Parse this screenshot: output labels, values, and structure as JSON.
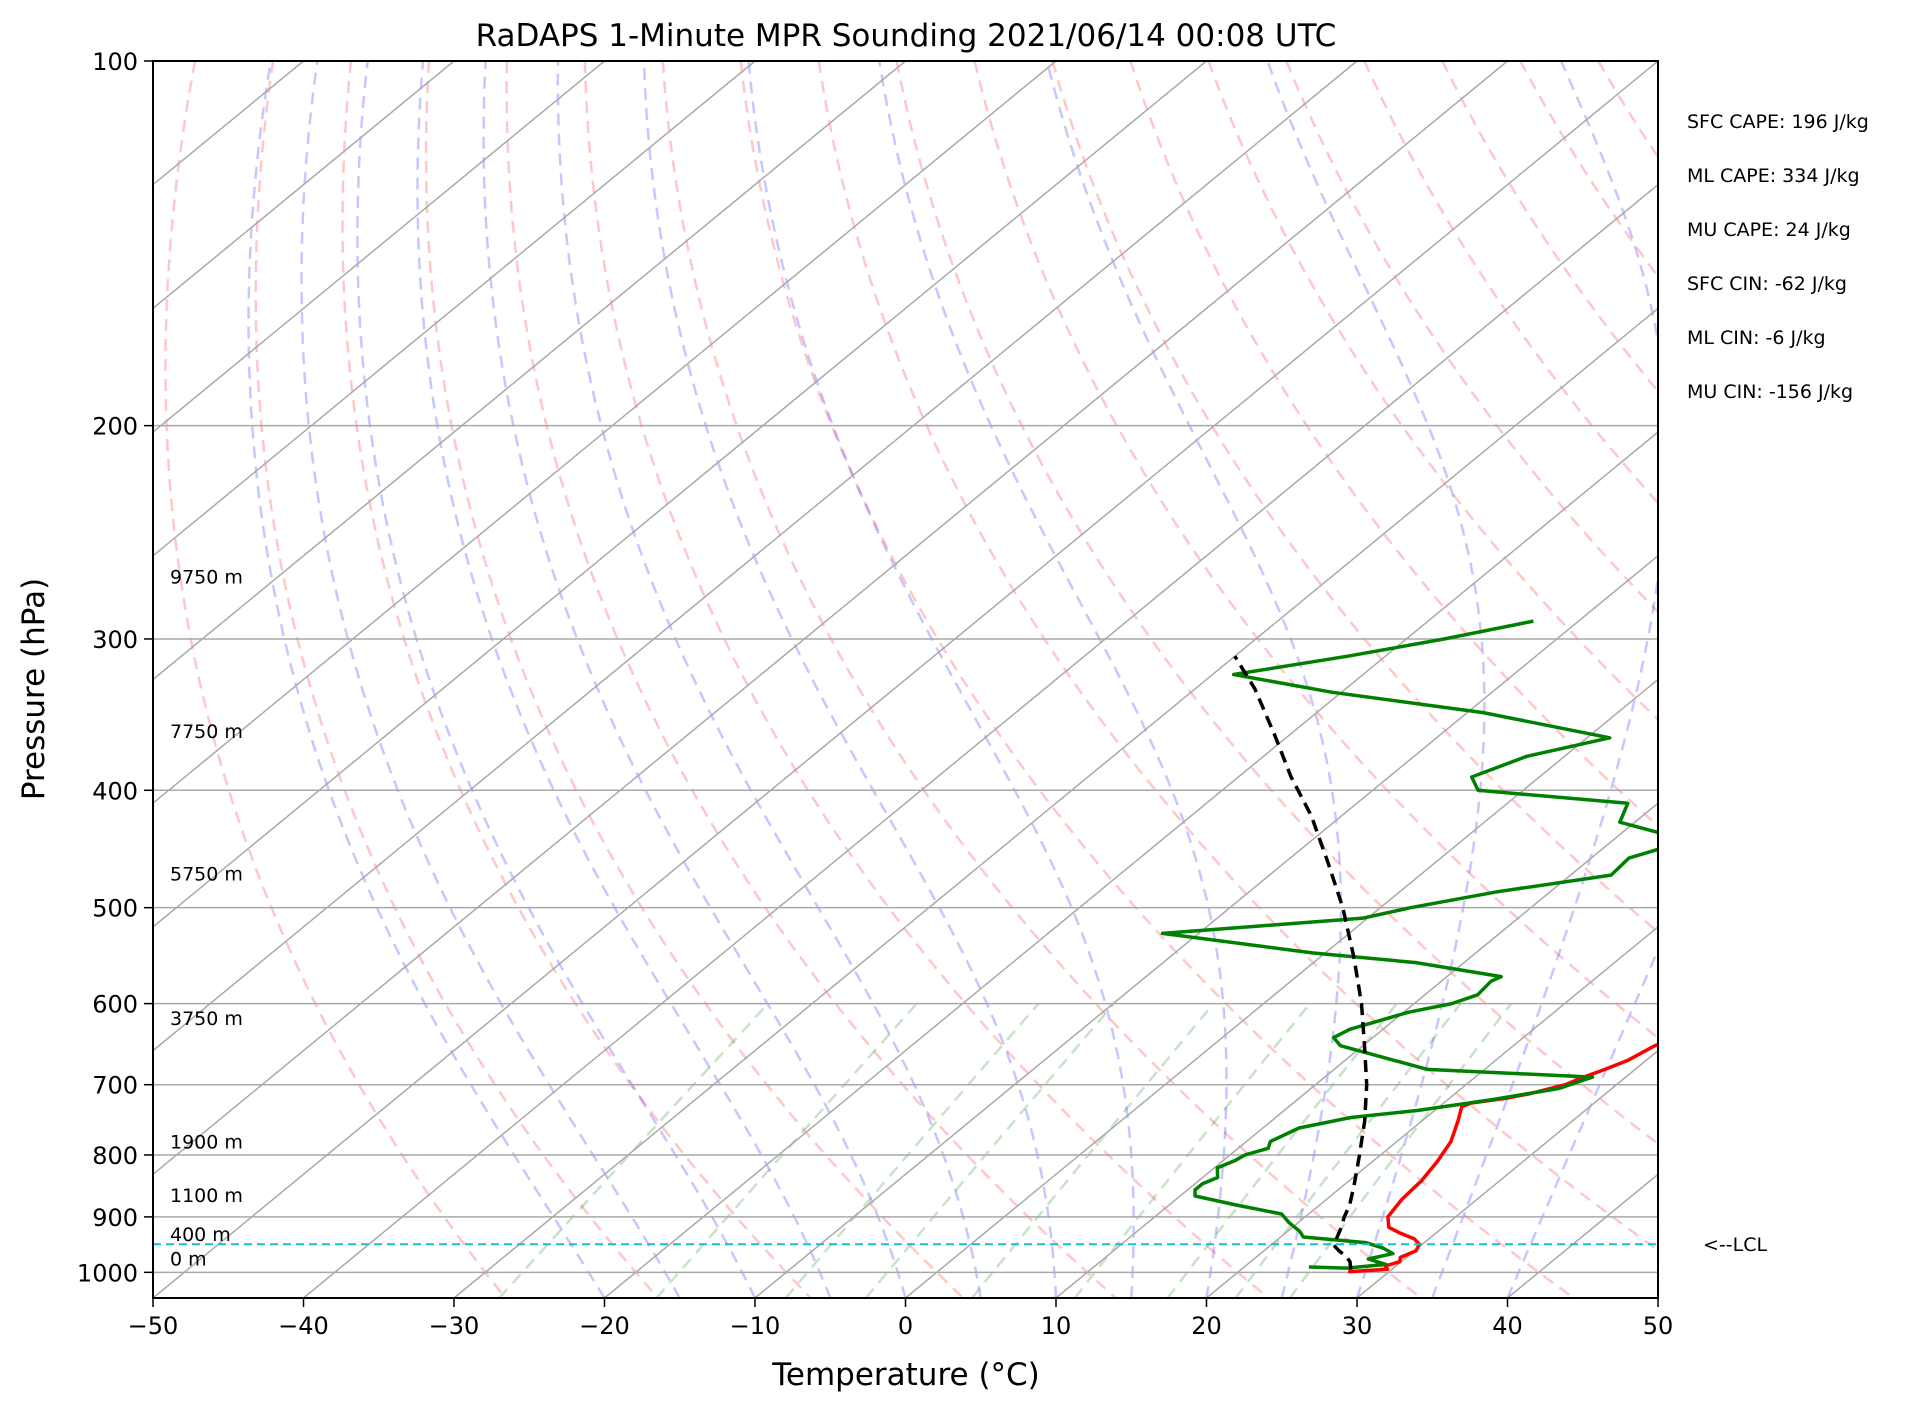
{
  "chart_data": {
    "type": "line",
    "title": "RaDAPS 1-Minute MPR Sounding 2021/06/14 00:08 UTC",
    "xlabel": "Temperature (°C)",
    "ylabel": "Pressure (hPa)",
    "xlim": [
      -50,
      50
    ],
    "ylim": [
      1050,
      100
    ],
    "y_scale": "log",
    "skew_t": true,
    "grid": true,
    "x_ticks": [
      -50,
      -40,
      -30,
      -20,
      -10,
      0,
      10,
      20,
      30,
      40,
      50
    ],
    "x_tick_labels": [
      "−50",
      "−40",
      "−30",
      "−20",
      "−10",
      "0",
      "10",
      "20",
      "30",
      "40",
      "50"
    ],
    "y_ticks": [
      100,
      200,
      300,
      400,
      500,
      600,
      700,
      800,
      900,
      1000
    ],
    "y_tick_labels": [
      "100",
      "200",
      "300",
      "400",
      "500",
      "600",
      "700",
      "800",
      "900",
      "1000"
    ],
    "height_labels": [
      {
        "p": 987,
        "text": "0 m"
      },
      {
        "p": 942,
        "text": "400 m"
      },
      {
        "p": 875,
        "text": "1100 m"
      },
      {
        "p": 790,
        "text": "1900 m"
      },
      {
        "p": 625,
        "text": "3750 m"
      },
      {
        "p": 475,
        "text": "5750 m"
      },
      {
        "p": 362,
        "text": "7750 m"
      },
      {
        "p": 270,
        "text": "9750 m"
      }
    ],
    "stats": [
      "SFC CAPE: 196 J/kg",
      "ML CAPE: 334 J/kg",
      "MU CAPE: 24 J/kg",
      "SFC CIN: -62 J/kg",
      "ML CIN: -6 J/kg",
      "MU CIN: -156 J/kg"
    ],
    "lcl": {
      "p": 948,
      "label": "<--LCL"
    },
    "series": [
      {
        "color": "#ff0000",
        "points": [
          [
            999,
            27.3
          ],
          [
            994,
            29.7
          ],
          [
            988,
            29.3
          ],
          [
            980,
            29.9
          ],
          [
            972,
            29.6
          ],
          [
            960,
            30.1
          ],
          [
            948,
            29.8
          ],
          [
            938,
            29.0
          ],
          [
            928,
            27.6
          ],
          [
            918,
            26.4
          ],
          [
            900,
            25.5
          ],
          [
            870,
            25.0
          ],
          [
            840,
            24.8
          ],
          [
            810,
            24.3
          ],
          [
            780,
            23.6
          ],
          [
            750,
            22.4
          ],
          [
            730,
            21.5
          ],
          [
            725,
            21.8
          ],
          [
            718,
            23.8
          ],
          [
            712,
            25.0
          ],
          [
            700,
            26.6
          ],
          [
            690,
            27.2
          ],
          [
            680,
            28.0
          ],
          [
            668,
            28.8
          ],
          [
            650,
            29.4
          ],
          [
            640,
            30.2
          ],
          [
            620,
            31.8
          ],
          [
            600,
            33.2
          ],
          [
            585,
            33.6
          ],
          [
            570,
            33.7
          ],
          [
            558,
            34.0
          ],
          [
            545,
            33.6
          ],
          [
            535,
            32.0
          ],
          [
            510,
            31.8
          ],
          [
            500,
            30.5
          ],
          [
            485,
            30.0
          ],
          [
            470,
            29.8
          ],
          [
            455,
            28.7
          ],
          [
            440,
            26.0
          ],
          [
            425,
            22.5
          ],
          [
            405,
            19.0
          ],
          [
            395,
            17.0
          ],
          [
            385,
            15.8
          ],
          [
            375,
            16.5
          ],
          [
            360,
            16.8
          ],
          [
            350,
            16.4
          ],
          [
            340,
            16.0
          ],
          [
            327,
            15.1
          ],
          [
            315,
            13.4
          ],
          [
            310,
            12.6
          ]
        ]
      },
      {
        "color": "#008000",
        "points": [
          [
            990,
            24.3
          ],
          [
            992,
            26.9
          ],
          [
            985,
            29.2
          ],
          [
            975,
            27.6
          ],
          [
            965,
            28.8
          ],
          [
            955,
            27.7
          ],
          [
            945,
            26.1
          ],
          [
            935,
            21.5
          ],
          [
            925,
            20.8
          ],
          [
            910,
            19.4
          ],
          [
            895,
            18.2
          ],
          [
            880,
            14.5
          ],
          [
            865,
            11.0
          ],
          [
            855,
            10.5
          ],
          [
            845,
            10.5
          ],
          [
            835,
            11.0
          ],
          [
            820,
            10.2
          ],
          [
            808,
            10.8
          ],
          [
            800,
            11.0
          ],
          [
            790,
            12.0
          ],
          [
            780,
            11.6
          ],
          [
            760,
            12.4
          ],
          [
            745,
            15.0
          ],
          [
            735,
            18.9
          ],
          [
            720,
            23.0
          ],
          [
            705,
            26.5
          ],
          [
            690,
            27.8
          ],
          [
            680,
            16.2
          ],
          [
            650,
            8.5
          ],
          [
            640,
            7.4
          ],
          [
            630,
            7.8
          ],
          [
            610,
            10.3
          ],
          [
            600,
            12.5
          ],
          [
            590,
            13.5
          ],
          [
            575,
            13.3
          ],
          [
            570,
            13.6
          ],
          [
            555,
            6.8
          ],
          [
            545,
            -0.8
          ],
          [
            525,
            -12.4
          ],
          [
            510,
            -0.3
          ],
          [
            500,
            2.0
          ],
          [
            485,
            6.5
          ],
          [
            470,
            12.7
          ],
          [
            455,
            12.5
          ],
          [
            440,
            15.0
          ],
          [
            425,
            9.0
          ],
          [
            410,
            8.0
          ],
          [
            400,
            -3.0
          ],
          [
            390,
            -4.5
          ],
          [
            375,
            -2.5
          ],
          [
            362,
            1.5
          ],
          [
            345,
            -9.0
          ],
          [
            332,
            -20.6
          ],
          [
            321,
            -28.6
          ],
          [
            310,
            -22.5
          ],
          [
            300,
            -17.5
          ],
          [
            290,
            -13.0
          ]
        ]
      },
      {
        "color": "#000000",
        "dashed": true,
        "points": [
          [
            995,
            27.3
          ],
          [
            980,
            26.6
          ],
          [
            970,
            25.9
          ],
          [
            960,
            25.0
          ],
          [
            950,
            24.2
          ],
          [
            940,
            23.9
          ],
          [
            920,
            23.3
          ],
          [
            900,
            22.6
          ],
          [
            880,
            22.0
          ],
          [
            850,
            20.8
          ],
          [
            800,
            18.6
          ],
          [
            750,
            16.2
          ],
          [
            700,
            13.4
          ],
          [
            650,
            10.1
          ],
          [
            600,
            6.5
          ],
          [
            550,
            2.3
          ],
          [
            500,
            -2.5
          ],
          [
            460,
            -7.0
          ],
          [
            420,
            -12.0
          ],
          [
            390,
            -16.5
          ],
          [
            360,
            -21.0
          ],
          [
            330,
            -26.0
          ],
          [
            310,
            -30.0
          ]
        ]
      }
    ]
  }
}
